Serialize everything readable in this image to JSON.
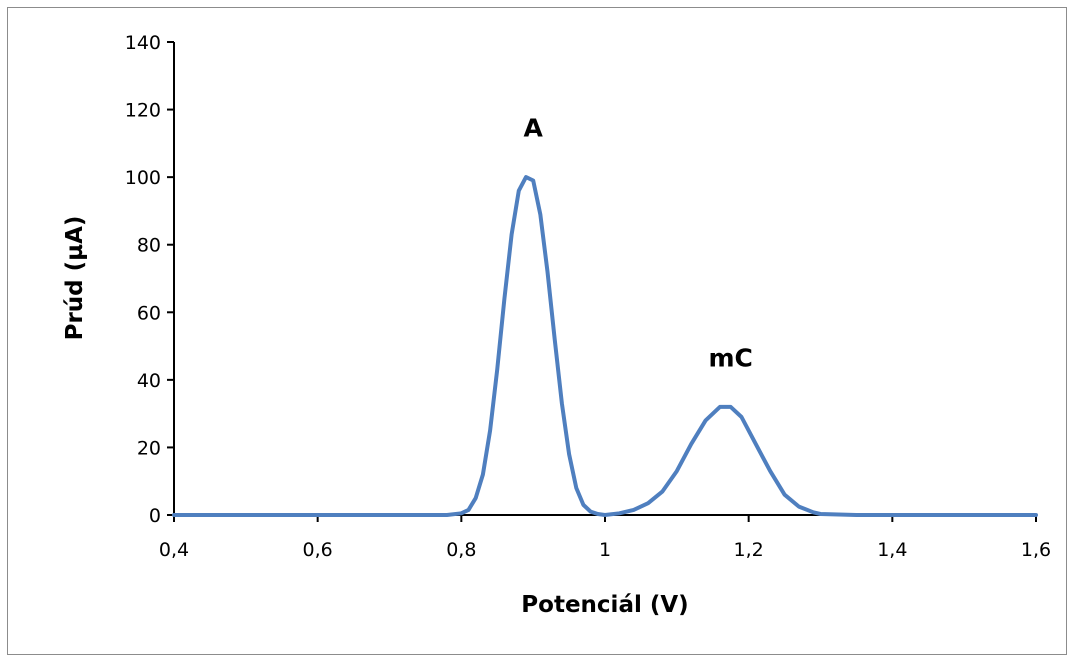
{
  "chart_data": {
    "type": "line",
    "title": "",
    "xlabel": "Potenciál (V)",
    "ylabel": "Prúd (µA)",
    "xlim": [
      0.4,
      1.6
    ],
    "ylim": [
      0,
      140
    ],
    "x_ticks": [
      0.4,
      0.6,
      0.8,
      1.0,
      1.2,
      1.4,
      1.6
    ],
    "x_tick_labels": [
      "0,4",
      "0,6",
      "0,8",
      "1",
      "1,2",
      "1,4",
      "1,6"
    ],
    "y_ticks": [
      0,
      20,
      40,
      60,
      80,
      100,
      120,
      140
    ],
    "y_tick_labels": [
      "0",
      "20",
      "40",
      "60",
      "80",
      "100",
      "120",
      "140"
    ],
    "grid": false,
    "legend": "none",
    "series": [
      {
        "color": "#4f7fbf",
        "x": [
          0.4,
          0.45,
          0.5,
          0.55,
          0.6,
          0.65,
          0.7,
          0.75,
          0.78,
          0.8,
          0.81,
          0.82,
          0.83,
          0.84,
          0.85,
          0.86,
          0.87,
          0.88,
          0.89,
          0.9,
          0.91,
          0.92,
          0.93,
          0.94,
          0.95,
          0.96,
          0.97,
          0.98,
          0.99,
          1.0,
          1.02,
          1.04,
          1.06,
          1.08,
          1.1,
          1.12,
          1.14,
          1.16,
          1.175,
          1.19,
          1.21,
          1.23,
          1.25,
          1.27,
          1.29,
          1.3,
          1.35,
          1.4,
          1.45,
          1.5,
          1.55,
          1.6
        ],
        "y": [
          0,
          0,
          0,
          0,
          0,
          0,
          0,
          0,
          0,
          0.5,
          1.5,
          5,
          12,
          25,
          43,
          64,
          83,
          96,
          100,
          99,
          89,
          72,
          52,
          33,
          18,
          8,
          3,
          1,
          0.3,
          0,
          0.5,
          1.5,
          3.5,
          7,
          13,
          21,
          28,
          32,
          32,
          29,
          21,
          13,
          6,
          2.5,
          0.8,
          0.3,
          0,
          0,
          0,
          0,
          0,
          0
        ]
      }
    ],
    "annotations": [
      {
        "text": "A",
        "x": 0.9,
        "y": 112
      },
      {
        "text": "mC",
        "x": 1.175,
        "y": 44
      }
    ]
  }
}
